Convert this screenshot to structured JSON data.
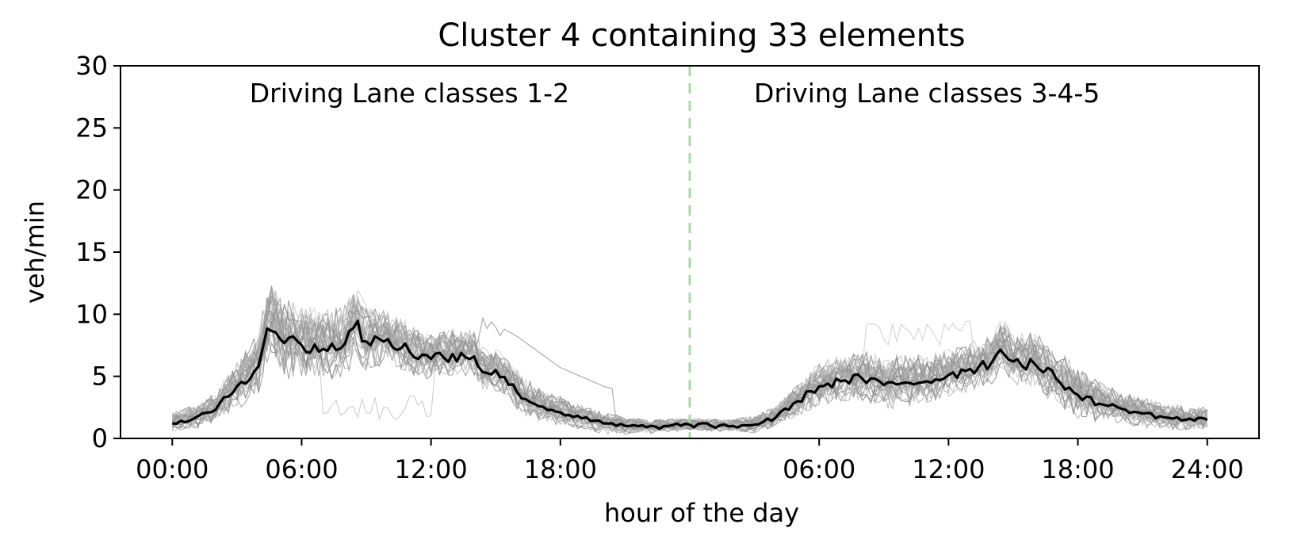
{
  "chart_data": {
    "type": "line",
    "title": "Cluster 4 containing 33 elements",
    "xlabel": "hour of the day",
    "ylabel": "veh/min",
    "ylim": [
      0,
      30
    ],
    "yticks": [
      0,
      5,
      10,
      15,
      20,
      25,
      30
    ],
    "xlim_hours": [
      -2.4,
      50.4
    ],
    "xticks": [
      {
        "hour": 0,
        "label": "00:00"
      },
      {
        "hour": 6,
        "label": "06:00"
      },
      {
        "hour": 12,
        "label": "12:00"
      },
      {
        "hour": 18,
        "label": "18:00"
      },
      {
        "hour": 30,
        "label": "06:00"
      },
      {
        "hour": 36,
        "label": "12:00"
      },
      {
        "hour": 42,
        "label": "18:00"
      },
      {
        "hour": 48,
        "label": "24:00"
      }
    ],
    "divider_hour": 24,
    "divider_color": "#a8d8a8",
    "annotations": [
      {
        "text": "Driving Lane classes 1-2",
        "hour": 11
      },
      {
        "text": "Driving Lane classes 3-4-5",
        "hour": 35
      }
    ],
    "grid": false,
    "legend": "none",
    "member_count": 33,
    "member_color": "#808080",
    "centroid_color": "#000000",
    "centroid": {
      "x_hours": [
        0,
        1,
        2,
        3,
        4,
        4.5,
        5,
        6,
        7,
        8,
        8.5,
        9,
        10,
        11,
        12,
        13,
        14,
        14.5,
        15,
        16,
        17,
        18,
        19,
        20,
        21,
        22,
        23,
        24,
        25,
        26,
        27,
        28,
        29,
        30,
        31,
        32,
        33,
        34,
        35,
        36,
        37,
        38,
        38.5,
        39,
        40,
        41,
        42,
        43,
        44,
        45,
        46,
        47,
        48
      ],
      "y": [
        1.2,
        1.6,
        2.3,
        4.2,
        5.8,
        9.6,
        8.0,
        7.5,
        7.2,
        7.6,
        9.2,
        7.8,
        8.0,
        7.0,
        6.4,
        6.8,
        6.6,
        5.2,
        5.5,
        3.7,
        2.6,
        2.1,
        1.6,
        1.2,
        1.0,
        0.9,
        1.0,
        1.1,
        1.0,
        1.0,
        1.1,
        1.7,
        3.0,
        4.2,
        4.6,
        4.8,
        4.3,
        4.5,
        4.6,
        5.1,
        5.6,
        6.1,
        7.4,
        6.2,
        6.0,
        4.8,
        3.5,
        2.8,
        2.4,
        2.0,
        1.7,
        1.5,
        1.5
      ]
    },
    "member_envelope": {
      "x_hours": [
        0,
        2,
        4,
        5,
        6,
        8,
        10,
        12,
        14,
        16,
        18,
        20,
        22,
        24,
        26,
        28,
        30,
        32,
        34,
        36,
        38,
        40,
        42,
        44,
        46,
        48
      ],
      "low": [
        0.4,
        0.7,
        2.0,
        4.0,
        4.5,
        4.5,
        4.8,
        4.5,
        4.2,
        2.8,
        1.5,
        0.8,
        0.5,
        0.5,
        0.5,
        0.8,
        2.0,
        2.6,
        2.6,
        3.0,
        3.4,
        3.2,
        2.0,
        1.2,
        0.8,
        0.6
      ],
      "high": [
        2.6,
        3.8,
        9.0,
        12.5,
        12.0,
        12.5,
        10.5,
        9.5,
        9.0,
        7.0,
        4.5,
        3.0,
        2.0,
        1.8,
        1.8,
        3.0,
        6.5,
        8.0,
        8.0,
        8.0,
        8.5,
        9.0,
        7.5,
        4.5,
        3.5,
        3.0
      ]
    }
  }
}
